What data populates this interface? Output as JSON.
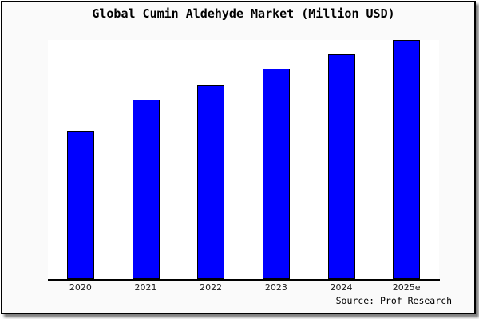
{
  "window": {
    "background": "#FAFAFA",
    "frame_border_color": "#000000",
    "shadow_color": "#696969"
  },
  "header": {
    "title": "Global Cumin Aldehyde Market (Million USD)"
  },
  "footer": {
    "source": "Source: Prof Research"
  },
  "chart_data": {
    "type": "bar",
    "title": "Global Cumin Aldehyde Market (Million USD)",
    "categories": [
      "2020",
      "2021",
      "2022",
      "2023",
      "2024",
      "2025e"
    ],
    "values": [
      62,
      75,
      81,
      88,
      94,
      100
    ],
    "xlabel": "",
    "ylabel": "",
    "ylim": [
      0,
      100
    ],
    "grid": false,
    "legend": false,
    "y_axis_labels_visible": false,
    "bar_color": "#0000FF",
    "bar_border_color": "#000000",
    "plot_background": "#FFFFFF",
    "source_label": "Source: Prof Research"
  }
}
